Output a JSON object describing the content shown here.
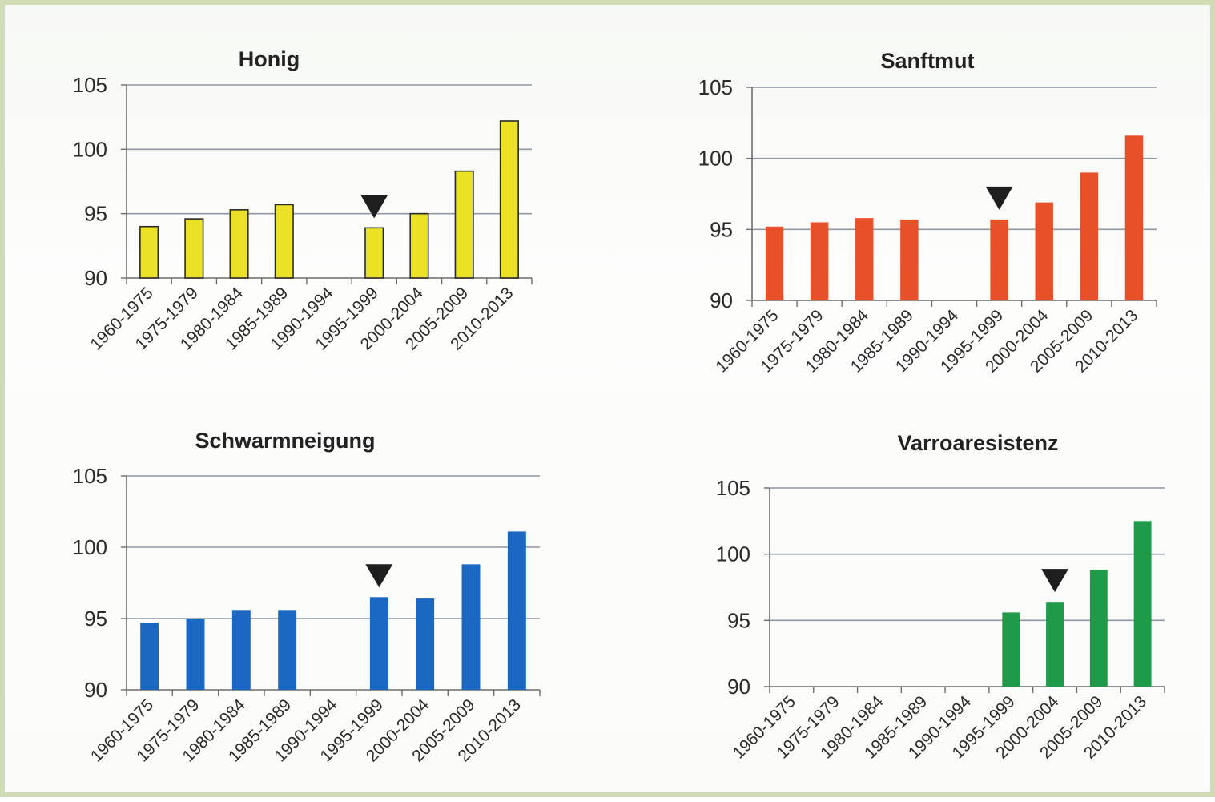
{
  "chart_data": [
    {
      "type": "bar",
      "title": "Honig",
      "categories": [
        "1960-1975",
        "1975-1979",
        "1980-1984",
        "1985-1989",
        "1990-1994",
        "1995-1999",
        "2000-2004",
        "2005-2009",
        "2010-2013"
      ],
      "values": [
        94.0,
        94.6,
        95.3,
        95.7,
        null,
        93.9,
        95.0,
        98.3,
        102.2
      ],
      "ylim": [
        90,
        105
      ],
      "yticks": [
        "90",
        "95",
        "100",
        "105"
      ],
      "grid": true,
      "bar_color": "#ebe227",
      "bar_edge_color": "#2a2a2a",
      "marker": "triangle-down",
      "marker_category": "1995-1999",
      "marker_color": "#1e1e1e"
    },
    {
      "type": "bar",
      "title": "Sanftmut",
      "categories": [
        "1960-1975",
        "1975-1979",
        "1980-1984",
        "1985-1989",
        "1990-1994",
        "1995-1999",
        "2000-2004",
        "2005-2009",
        "2010-2013"
      ],
      "values": [
        95.2,
        95.5,
        95.8,
        95.7,
        null,
        95.7,
        96.9,
        99.0,
        101.6
      ],
      "ylim": [
        90,
        105
      ],
      "yticks": [
        "90",
        "95",
        "100",
        "105"
      ],
      "grid": true,
      "bar_color": "#e8502a",
      "bar_edge_color": "none",
      "marker": "triangle-down",
      "marker_category": "1995-1999",
      "marker_color": "#1e1e1e"
    },
    {
      "type": "bar",
      "title": "Schwarmneigung",
      "categories": [
        "1960-1975",
        "1975-1979",
        "1980-1984",
        "1985-1989",
        "1990-1994",
        "1995-1999",
        "2000-2004",
        "2005-2009",
        "2010-2013"
      ],
      "values": [
        94.7,
        95.0,
        95.6,
        95.6,
        null,
        96.5,
        96.4,
        98.8,
        101.1
      ],
      "ylim": [
        90,
        105
      ],
      "yticks": [
        "90",
        "95",
        "100",
        "105"
      ],
      "grid": true,
      "bar_color": "#1a68c2",
      "bar_edge_color": "none",
      "marker": "triangle-down",
      "marker_category": "1995-1999",
      "marker_color": "#1e1e1e"
    },
    {
      "type": "bar",
      "title": "Varroaresistenz",
      "categories": [
        "1960-1975",
        "1975-1979",
        "1980-1984",
        "1985-1989",
        "1990-1994",
        "1995-1999",
        "2000-2004",
        "2005-2009",
        "2010-2013"
      ],
      "values": [
        null,
        null,
        null,
        null,
        null,
        95.6,
        96.4,
        98.8,
        102.5
      ],
      "ylim": [
        90,
        105
      ],
      "yticks": [
        "90",
        "95",
        "100",
        "105"
      ],
      "grid": true,
      "bar_color": "#1f9a48",
      "bar_edge_color": "none",
      "marker": "triangle-down",
      "marker_category": "2000-2004",
      "marker_color": "#1e1e1e"
    }
  ]
}
